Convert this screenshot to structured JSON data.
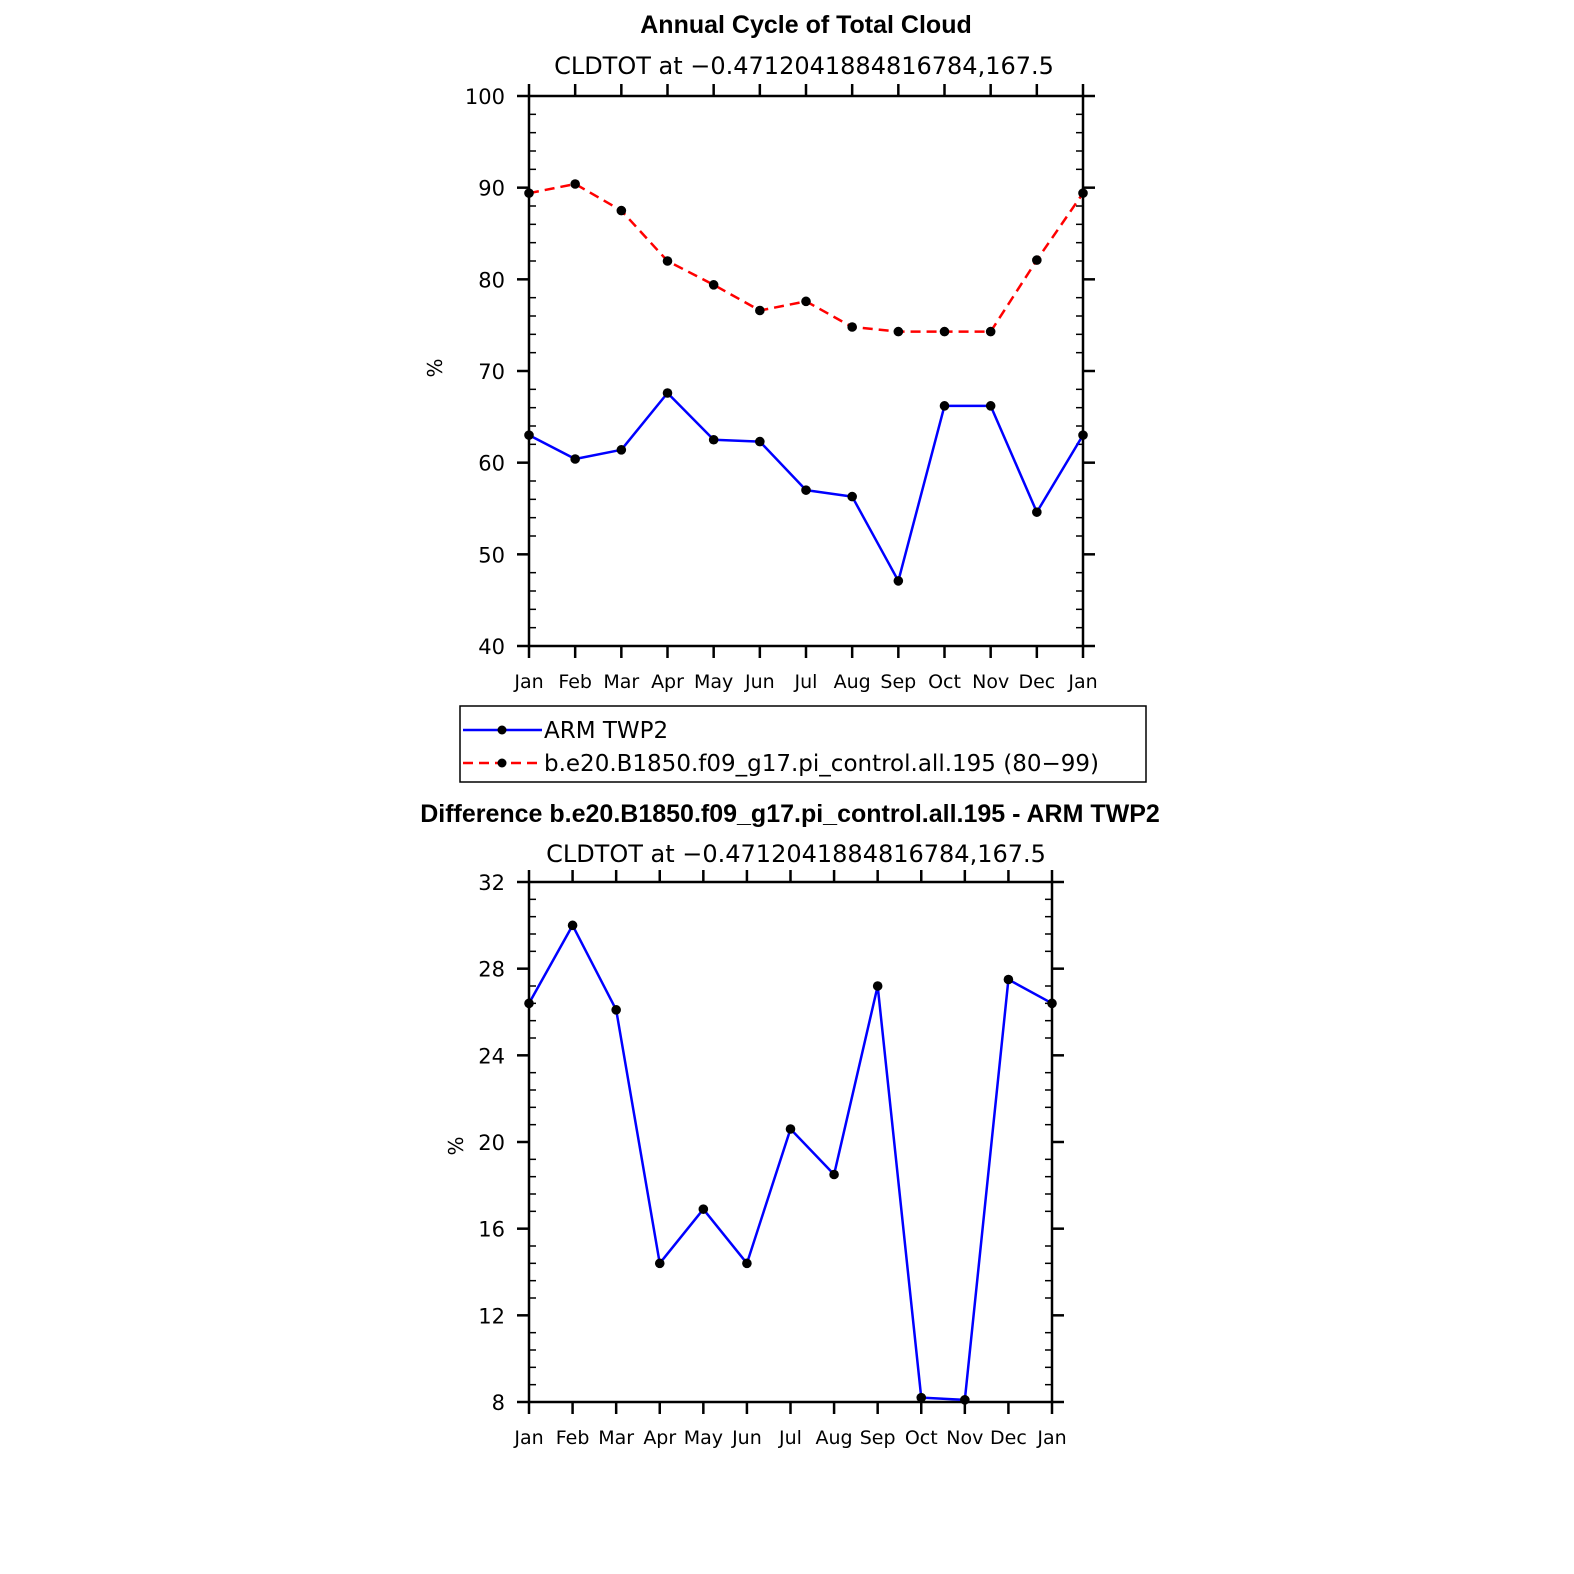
{
  "chart_data": [
    {
      "type": "line",
      "title": "Annual Cycle of Total Cloud",
      "subtitle": "CLDTOT at −0.4712041884816784,167.5",
      "ylabel": "%",
      "ylim": [
        40,
        100
      ],
      "yticks": [
        40,
        50,
        60,
        70,
        80,
        90,
        100
      ],
      "categories": [
        "Jan",
        "Feb",
        "Mar",
        "Apr",
        "May",
        "Jun",
        "Jul",
        "Aug",
        "Sep",
        "Oct",
        "Nov",
        "Dec",
        "Jan"
      ],
      "grid": false,
      "legend_placement": "below",
      "series": [
        {
          "name": "ARM TWP2",
          "color": "#0000ff",
          "dash": "solid",
          "marker": "dot",
          "values": [
            63.0,
            60.4,
            61.4,
            67.6,
            62.5,
            62.3,
            57.0,
            56.3,
            47.1,
            66.2,
            66.2,
            54.6,
            63.0
          ]
        },
        {
          "name": "b.e20.B1850.f09_g17.pi_control.all.195 (80−99)",
          "color": "#ff0000",
          "dash": "dashed",
          "marker": "dot",
          "values": [
            89.4,
            90.4,
            87.5,
            82.0,
            79.4,
            76.6,
            77.6,
            74.8,
            74.3,
            74.3,
            74.3,
            82.1,
            89.4
          ]
        }
      ]
    },
    {
      "type": "line",
      "title": "Difference b.e20.B1850.f09_g17.pi_control.all.195 - ARM TWP2",
      "subtitle": "CLDTOT at −0.4712041884816784,167.5",
      "ylabel": "%",
      "ylim": [
        8,
        32
      ],
      "yticks": [
        8,
        12,
        16,
        20,
        24,
        28,
        32
      ],
      "categories": [
        "Jan",
        "Feb",
        "Mar",
        "Apr",
        "May",
        "Jun",
        "Jul",
        "Aug",
        "Sep",
        "Oct",
        "Nov",
        "Dec",
        "Jan"
      ],
      "grid": false,
      "series": [
        {
          "color": "#0000ff",
          "dash": "solid",
          "marker": "dot",
          "values": [
            26.4,
            30.0,
            26.1,
            14.4,
            16.9,
            14.4,
            20.6,
            18.5,
            27.2,
            8.2,
            8.1,
            27.5,
            26.4
          ]
        }
      ]
    }
  ]
}
